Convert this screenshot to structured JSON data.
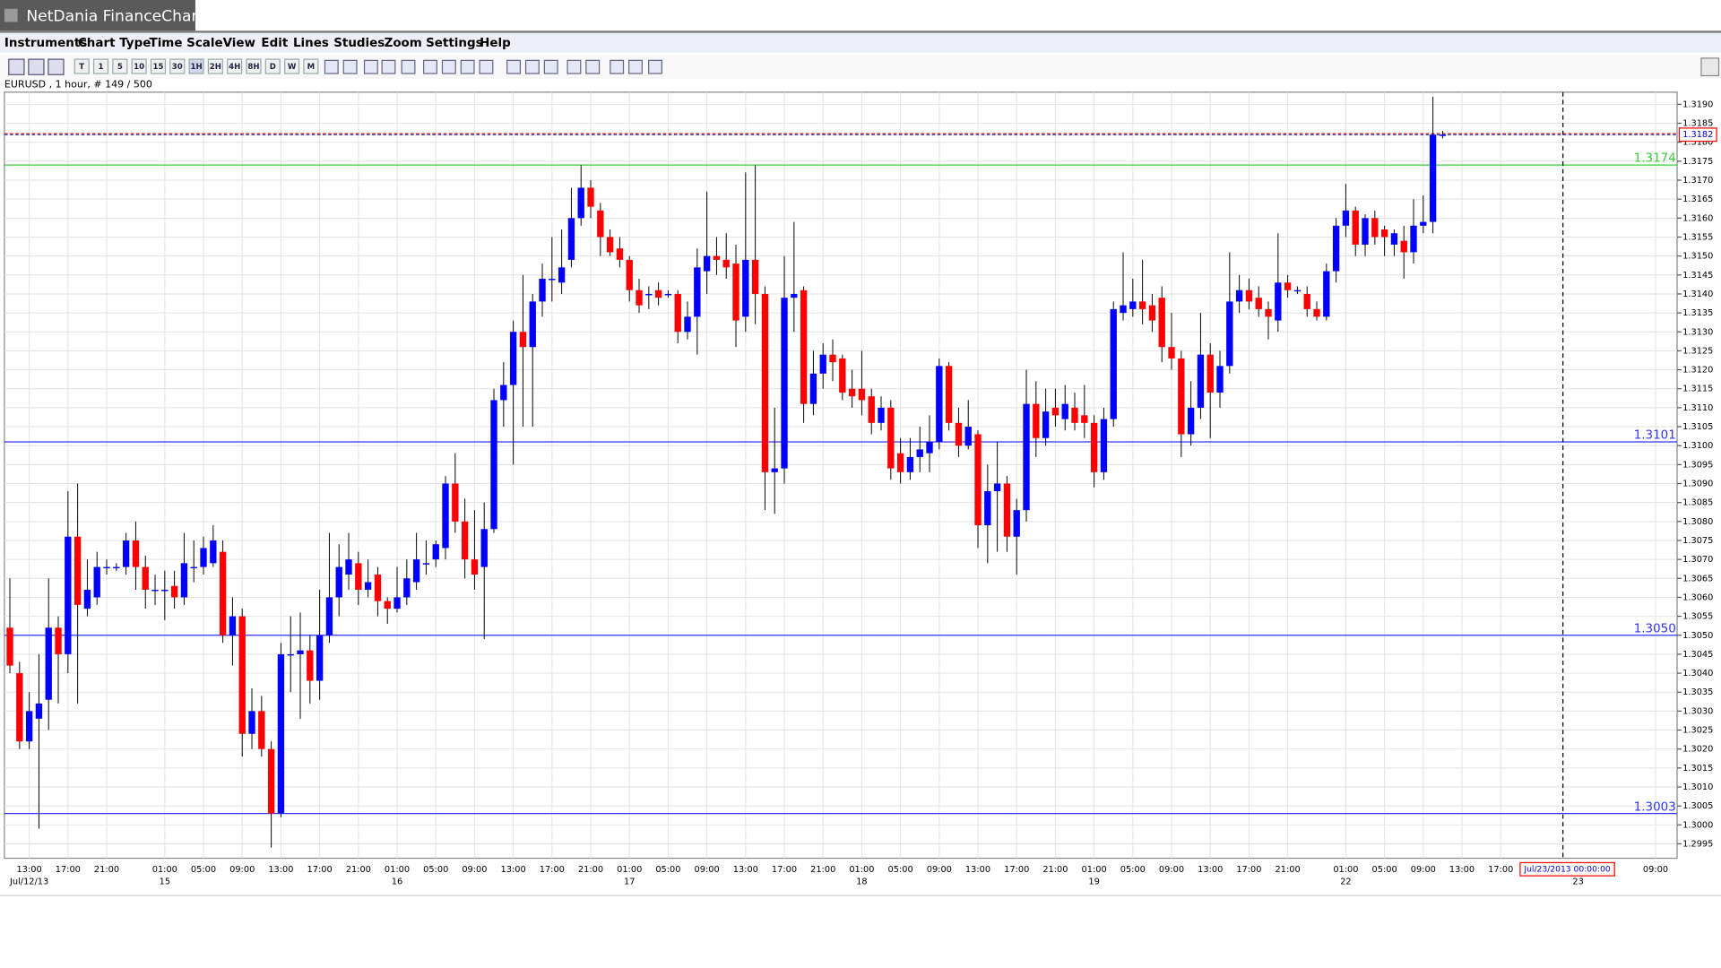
{
  "window_title": "NetDania FinanceChart",
  "menu": [
    "Instruments",
    "Chart Type",
    "Time Scale",
    "View",
    "Edit",
    "Lines",
    "Studies",
    "Zoom",
    "Settings",
    "Help"
  ],
  "toolbar": [
    "T",
    "1",
    "5",
    "10",
    "15",
    "30",
    "1H",
    "2H",
    "4H",
    "8H",
    "D",
    "W",
    "M"
  ],
  "chart_data": {
    "type": "candlestick",
    "title": "EURUSD , 1 hour, # 149 / 500",
    "up_color": "#0000ff",
    "down_color": "#ff0000",
    "ylim": [
      1.29912,
      1.31932
    ],
    "yticks": [
      1.2995,
      {
        "value": 1.3,
        "label": "1.3000"
      },
      1.3005,
      {
        "value": 1.301,
        "label": "1.3010"
      },
      1.3015,
      {
        "value": 1.302,
        "label": "1.3020"
      },
      1.3025,
      {
        "value": 1.303,
        "label": "1.3030"
      },
      1.3035,
      {
        "value": 1.304,
        "label": "1.3040"
      },
      1.3045,
      {
        "value": 1.305,
        "label": "1.3050"
      },
      1.3055,
      {
        "value": 1.306,
        "label": "1.3060"
      },
      1.3065,
      {
        "value": 1.307,
        "label": "1.3070"
      },
      1.3075,
      {
        "value": 1.308,
        "label": "1.3080"
      },
      1.3085,
      {
        "value": 1.309,
        "label": "1.3090"
      },
      1.3095,
      {
        "value": 1.31,
        "label": "1.3100"
      },
      1.3105,
      {
        "value": 1.311,
        "label": "1.3110"
      },
      1.3115,
      {
        "value": 1.312,
        "label": "1.3120"
      },
      1.3125,
      {
        "value": 1.313,
        "label": "1.3130"
      },
      1.3135,
      {
        "value": 1.314,
        "label": "1.3140"
      },
      1.3145,
      {
        "value": 1.315,
        "label": "1.3150"
      },
      1.3155,
      {
        "value": 1.316,
        "label": "1.3160"
      },
      1.3165,
      {
        "value": 1.317,
        "label": "1.3170"
      },
      1.3175,
      {
        "value": 1.318,
        "label": "1.3180"
      },
      1.3185,
      {
        "value": 1.319,
        "label": "1.3190"
      }
    ],
    "grid": true,
    "levels": [
      {
        "value": 1.3174,
        "color": "#33cc33"
      },
      {
        "value": 1.3101,
        "color": "#3333ff"
      },
      {
        "value": 1.305,
        "label": "1.3050",
        "color": "#3333ff"
      },
      {
        "value": 1.3003,
        "color": "#3333ff"
      }
    ],
    "last_price": 1.3182,
    "cursor_label": "Jul/23/2013 00:00:00",
    "categories": [
      null,
      null,
      "13:00",
      null,
      null,
      null,
      "17:00",
      null,
      null,
      null,
      "21:00",
      null,
      null,
      null,
      null,
      null,
      "01:00",
      null,
      null,
      null,
      "05:00",
      null,
      null,
      null,
      "09:00",
      null,
      null,
      null,
      "13:00",
      null,
      null,
      null,
      "17:00",
      null,
      null,
      null,
      "21:00",
      null,
      null,
      null,
      "01:00",
      null,
      null,
      null,
      "05:00",
      null,
      null,
      null,
      "09:00",
      null,
      null,
      null,
      "13:00",
      null,
      null,
      null,
      "17:00",
      null,
      null,
      null,
      "21:00",
      null,
      null,
      null,
      "01:00",
      null,
      null,
      null,
      "05:00",
      null,
      null,
      null,
      "09:00",
      null,
      null,
      null,
      "13:00",
      null,
      null,
      null,
      "17:00",
      null,
      null,
      null,
      "21:00",
      null,
      null,
      null,
      "01:00",
      null,
      null,
      null,
      "05:00",
      null,
      null,
      null,
      "09:00",
      null,
      null,
      null,
      "13:00",
      null,
      null,
      null,
      "17:00",
      null,
      null,
      null,
      "21:00",
      null,
      null,
      null,
      "01:00",
      null,
      null,
      null,
      "05:00",
      null,
      null,
      null,
      "09:00",
      null,
      null,
      null,
      "13:00",
      null,
      null,
      null,
      "17:00",
      null,
      null,
      null,
      "21:00",
      null,
      null,
      null,
      null,
      null,
      "01:00",
      null,
      null,
      null,
      "05:00",
      null,
      null,
      null,
      "09:00",
      null,
      null,
      null,
      "13:00",
      null,
      null,
      null,
      "17:00",
      null,
      null,
      null,
      null,
      null,
      null,
      null,
      null,
      null,
      null,
      null,
      null,
      null,
      null,
      null,
      "09:00"
    ],
    "dates": [
      null,
      null,
      "Jul/12/13",
      null,
      null,
      null,
      null,
      null,
      null,
      null,
      null,
      null,
      null,
      null,
      null,
      null,
      "15",
      null,
      null,
      null,
      null,
      null,
      null,
      null,
      null,
      null,
      null,
      null,
      null,
      null,
      null,
      null,
      null,
      null,
      null,
      null,
      null,
      null,
      null,
      null,
      "16",
      null,
      null,
      null,
      null,
      null,
      null,
      null,
      null,
      null,
      null,
      null,
      null,
      null,
      null,
      null,
      null,
      null,
      null,
      null,
      null,
      null,
      null,
      null,
      "17",
      null,
      null,
      null,
      null,
      null,
      null,
      null,
      null,
      null,
      null,
      null,
      null,
      null,
      null,
      null,
      null,
      null,
      null,
      null,
      null,
      null,
      null,
      null,
      "18",
      null,
      null,
      null,
      null,
      null,
      null,
      null,
      null,
      null,
      null,
      null,
      null,
      null,
      null,
      null,
      null,
      null,
      null,
      null,
      null,
      null,
      null,
      null,
      "19",
      null,
      null,
      null,
      null,
      null,
      null,
      null,
      null,
      null,
      null,
      null,
      null,
      null,
      null,
      null,
      null,
      null,
      null,
      null,
      null,
      null,
      null,
      null,
      null,
      null,
      "22",
      null,
      null,
      null,
      null,
      null,
      null,
      null,
      null,
      null,
      null,
      null,
      null,
      null,
      null,
      null,
      null,
      null,
      null,
      null,
      null,
      null,
      null,
      null,
      "23",
      null,
      null,
      null,
      null,
      null,
      null,
      null,
      null
    ],
    "open": [
      1.3052,
      1.304,
      1.3022,
      1.3028,
      1.3033,
      1.3052,
      1.3045,
      1.3076,
      1.3057,
      1.306,
      1.3068,
      1.3068,
      1.3068,
      1.3075,
      1.3068,
      1.3062,
      1.3062,
      1.3063,
      1.306,
      1.3068,
      1.3068,
      1.3069,
      1.3072,
      1.305,
      1.3055,
      1.3024,
      1.303,
      1.302,
      1.3003,
      1.3045,
      1.3045,
      1.3046,
      1.3038,
      1.305,
      1.306,
      1.3066,
      1.3069,
      1.3062,
      1.3066,
      1.3059,
      1.3057,
      1.306,
      1.3064,
      1.3069,
      1.307,
      1.3073,
      1.309,
      1.308,
      1.307,
      1.3068,
      1.3078,
      1.3112,
      1.3116,
      1.313,
      1.3126,
      1.3138,
      1.3144,
      1.3143,
      1.3149,
      1.316,
      1.3168,
      1.3162,
      1.3155,
      1.3152,
      1.3149,
      1.3141,
      1.314,
      1.3141,
      1.314,
      1.314,
      1.313,
      1.3134,
      1.3146,
      1.315,
      1.3149,
      1.3148,
      1.3134,
      1.3149,
      1.314,
      1.3093,
      1.3094,
      1.3139,
      1.3141,
      1.3111,
      1.3119,
      1.3124,
      1.3123,
      1.3115,
      1.3115,
      1.3113,
      1.3106,
      1.311,
      1.3098,
      1.3093,
      1.3097,
      1.3098,
      1.3101,
      1.3121,
      1.3106,
      1.31,
      1.3103,
      1.3079,
      1.3088,
      1.309,
      1.3076,
      1.3083,
      1.3111,
      1.3102,
      1.311,
      1.3107,
      1.311,
      1.3108,
      1.3106,
      1.3093,
      1.3107,
      1.3135,
      1.3136,
      1.3138,
      1.3137,
      1.3139,
      1.3126,
      1.3123,
      1.3103,
      1.311,
      1.3124,
      1.3114,
      1.3121,
      1.3138,
      1.3141,
      1.3139,
      1.3136,
      1.3133,
      1.3143,
      1.3141,
      1.314,
      1.3136,
      1.3134,
      1.3146,
      1.3158,
      1.3162,
      1.3153,
      1.316,
      1.3157,
      1.3153,
      1.3154,
      1.3151,
      1.3158,
      1.3159,
      1.3182,
      null,
      null,
      null,
      null,
      null,
      null,
      null,
      null,
      null,
      null,
      null,
      null,
      null,
      null,
      null,
      null,
      null,
      null,
      null,
      null,
      null,
      null
    ],
    "close": [
      1.3042,
      1.3022,
      1.303,
      1.3032,
      1.3052,
      1.3045,
      1.3076,
      1.3058,
      1.3062,
      1.3068,
      1.3068,
      1.3068,
      1.3075,
      1.3068,
      1.3062,
      1.3062,
      1.3062,
      1.306,
      1.3069,
      1.3068,
      1.3073,
      1.3075,
      1.305,
      1.3055,
      1.3024,
      1.303,
      1.302,
      1.3003,
      1.3045,
      1.3045,
      1.3046,
      1.3038,
      1.305,
      1.306,
      1.3068,
      1.307,
      1.3062,
      1.3064,
      1.3059,
      1.3057,
      1.306,
      1.3065,
      1.307,
      1.3069,
      1.3074,
      1.309,
      1.308,
      1.307,
      1.3066,
      1.3078,
      1.3112,
      1.3116,
      1.313,
      1.3126,
      1.3138,
      1.3144,
      1.3144,
      1.3147,
      1.316,
      1.3168,
      1.3163,
      1.3155,
      1.3151,
      1.3149,
      1.3141,
      1.3137,
      1.314,
      1.3139,
      1.314,
      1.313,
      1.3134,
      1.3147,
      1.315,
      1.3149,
      1.3147,
      1.3133,
      1.3149,
      1.314,
      1.3093,
      1.3094,
      1.3139,
      1.314,
      1.3111,
      1.3119,
      1.3124,
      1.3122,
      1.3114,
      1.3113,
      1.3112,
      1.3106,
      1.311,
      1.3094,
      1.3093,
      1.3097,
      1.3099,
      1.3101,
      1.3121,
      1.3106,
      1.31,
      1.3105,
      1.3079,
      1.3088,
      1.309,
      1.3076,
      1.3083,
      1.3111,
      1.3102,
      1.3109,
      1.3108,
      1.3111,
      1.3106,
      1.3106,
      1.3093,
      1.3107,
      1.3136,
      1.3137,
      1.3138,
      1.3136,
      1.3133,
      1.3126,
      1.3123,
      1.3103,
      1.311,
      1.3124,
      1.3114,
      1.3121,
      1.3138,
      1.3141,
      1.3138,
      1.3136,
      1.3134,
      1.3143,
      1.3141,
      1.3141,
      1.3136,
      1.3134,
      1.3146,
      1.3158,
      1.3162,
      1.3153,
      1.316,
      1.3155,
      1.3155,
      1.3156,
      1.3151,
      1.3158,
      1.3159,
      1.3182,
      1.3182,
      null,
      null,
      null,
      null,
      null,
      null,
      null,
      null,
      null,
      null,
      null,
      null,
      null,
      null,
      null,
      null,
      null,
      null,
      null,
      null,
      null,
      null
    ],
    "high": [
      1.3065,
      1.3043,
      1.3035,
      1.3045,
      1.3065,
      1.3055,
      1.3088,
      1.309,
      1.307,
      1.3072,
      1.307,
      1.3069,
      1.3077,
      1.308,
      1.3071,
      1.3066,
      1.3067,
      1.3067,
      1.3077,
      1.3075,
      1.3076,
      1.3079,
      1.3075,
      1.306,
      1.3057,
      1.3036,
      1.3034,
      1.3022,
      1.3048,
      1.3055,
      1.3056,
      1.305,
      1.3062,
      1.3077,
      1.3074,
      1.3077,
      1.3072,
      1.307,
      1.3068,
      1.306,
      1.3068,
      1.307,
      1.3077,
      1.3075,
      1.3075,
      1.3092,
      1.3098,
      1.3086,
      1.3083,
      1.3085,
      1.3115,
      1.3122,
      1.3133,
      1.3145,
      1.314,
      1.3148,
      1.3155,
      1.3157,
      1.3168,
      1.3174,
      1.317,
      1.3164,
      1.3157,
      1.3155,
      1.315,
      1.3144,
      1.3142,
      1.3143,
      1.3141,
      1.3141,
      1.3138,
      1.3152,
      1.3167,
      1.3155,
      1.3156,
      1.3153,
      1.3172,
      1.3174,
      1.3142,
      1.311,
      1.315,
      1.3159,
      1.3142,
      1.3125,
      1.3127,
      1.3128,
      1.3124,
      1.312,
      1.3125,
      1.3115,
      1.3113,
      1.3112,
      1.3102,
      1.3102,
      1.3105,
      1.3108,
      1.3123,
      1.3122,
      1.311,
      1.3112,
      1.3104,
      1.3095,
      1.3101,
      1.3092,
      1.3086,
      1.312,
      1.3117,
      1.3115,
      1.3115,
      1.3116,
      1.3114,
      1.3116,
      1.3108,
      1.311,
      1.3138,
      1.3151,
      1.3144,
      1.3149,
      1.314,
      1.3142,
      1.3135,
      1.3125,
      1.3117,
      1.3135,
      1.3127,
      1.3125,
      1.3151,
      1.3145,
      1.3144,
      1.3142,
      1.3138,
      1.3156,
      1.3145,
      1.3142,
      1.3142,
      1.3138,
      1.3148,
      1.316,
      1.3169,
      1.3163,
      1.3161,
      1.3162,
      1.3158,
      1.3157,
      1.3158,
      1.3165,
      1.3166,
      1.3192,
      1.3183,
      null,
      null,
      null,
      null,
      null,
      null,
      null,
      null,
      null,
      null,
      null,
      null,
      null,
      null,
      null,
      null,
      null,
      null,
      null,
      null,
      null,
      null
    ],
    "low": [
      1.304,
      1.302,
      1.302,
      1.2999,
      1.3025,
      1.3032,
      1.304,
      1.3032,
      1.3055,
      1.3058,
      1.3066,
      1.3067,
      1.3066,
      1.3062,
      1.3057,
      1.3058,
      1.3054,
      1.3057,
      1.3058,
      1.3064,
      1.3066,
      1.3068,
      1.3048,
      1.3042,
      1.3018,
      1.302,
      1.3018,
      1.2994,
      1.3002,
      1.3035,
      1.3028,
      1.3032,
      1.3033,
      1.3048,
      1.3055,
      1.3062,
      1.3058,
      1.306,
      1.3055,
      1.3053,
      1.3056,
      1.3058,
      1.3062,
      1.3066,
      1.3068,
      1.307,
      1.3077,
      1.3065,
      1.3062,
      1.3049,
      1.3077,
      1.3105,
      1.3095,
      1.3105,
      1.3105,
      1.3134,
      1.3138,
      1.314,
      1.3147,
      1.3158,
      1.316,
      1.315,
      1.315,
      1.3147,
      1.3138,
      1.3135,
      1.3136,
      1.3137,
      1.3139,
      1.3127,
      1.3128,
      1.3124,
      1.314,
      1.3145,
      1.3144,
      1.3126,
      1.313,
      1.3132,
      1.3083,
      1.3082,
      1.309,
      1.313,
      1.3106,
      1.3108,
      1.3115,
      1.3117,
      1.3112,
      1.311,
      1.3108,
      1.3103,
      1.3104,
      1.3091,
      1.309,
      1.3091,
      1.3093,
      1.3093,
      1.3099,
      1.3104,
      1.3097,
      1.3099,
      1.3073,
      1.3069,
      1.3072,
      1.3072,
      1.3066,
      1.308,
      1.3097,
      1.31,
      1.3105,
      1.3104,
      1.3104,
      1.3102,
      1.3089,
      1.3091,
      1.3105,
      1.3133,
      1.3134,
      1.3132,
      1.313,
      1.3122,
      1.312,
      1.3097,
      1.31,
      1.3107,
      1.3102,
      1.311,
      1.3119,
      1.3135,
      1.3136,
      1.3134,
      1.3128,
      1.313,
      1.3139,
      1.314,
      1.3134,
      1.3133,
      1.3133,
      1.3143,
      1.3155,
      1.315,
      1.315,
      1.3153,
      1.315,
      1.315,
      1.3144,
      1.3148,
      1.3156,
      1.3156,
      1.3181,
      null,
      null,
      null,
      null,
      null,
      null,
      null,
      null,
      null,
      null,
      null,
      null,
      null,
      null,
      null,
      null,
      null,
      null,
      null,
      null,
      null,
      null
    ]
  }
}
